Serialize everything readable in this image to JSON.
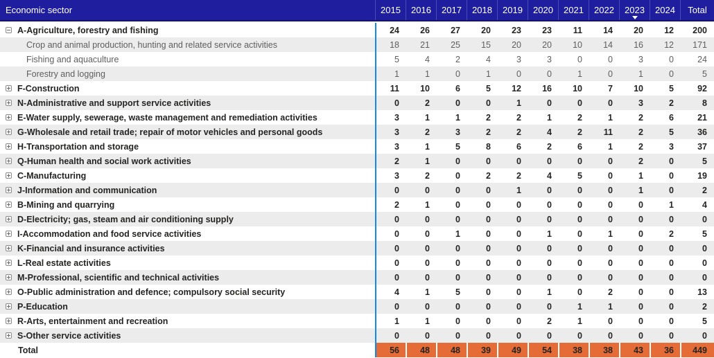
{
  "table": {
    "row_header_label": "Economic sector",
    "columns": [
      "2015",
      "2016",
      "2017",
      "2018",
      "2019",
      "2020",
      "2021",
      "2022",
      "2023",
      "2024",
      "Total"
    ],
    "sorted_column": "2023",
    "sort_direction": "descending",
    "colors": {
      "header_bg": "#1E1E9E",
      "header_border": "#12126E",
      "column_divider": "#1389E6",
      "row_stripe": "#ECECEC",
      "grand_total_bg": "#E66C37"
    },
    "rows": [
      {
        "label": "A-Agriculture, forestry and fishing",
        "level": 0,
        "expander": "expanded",
        "values": [
          24,
          26,
          27,
          20,
          23,
          23,
          11,
          14,
          20,
          12,
          200
        ]
      },
      {
        "label": "Crop and animal production, hunting and related service activities",
        "level": 1,
        "expander": null,
        "values": [
          18,
          21,
          25,
          15,
          20,
          20,
          10,
          14,
          16,
          12,
          171
        ]
      },
      {
        "label": "Fishing and aquaculture",
        "level": 1,
        "expander": null,
        "values": [
          5,
          4,
          2,
          4,
          3,
          3,
          0,
          0,
          3,
          0,
          24
        ]
      },
      {
        "label": "Forestry and logging",
        "level": 1,
        "expander": null,
        "values": [
          1,
          1,
          0,
          1,
          0,
          0,
          1,
          0,
          1,
          0,
          5
        ]
      },
      {
        "label": "F-Construction",
        "level": 0,
        "expander": "collapsed",
        "values": [
          11,
          10,
          6,
          5,
          12,
          16,
          10,
          7,
          10,
          5,
          92
        ]
      },
      {
        "label": "N-Administrative and support service activities",
        "level": 0,
        "expander": "collapsed",
        "values": [
          0,
          2,
          0,
          0,
          1,
          0,
          0,
          0,
          3,
          2,
          8
        ]
      },
      {
        "label": "E-Water supply, sewerage, waste management and remediation activities",
        "level": 0,
        "expander": "collapsed",
        "values": [
          3,
          1,
          1,
          2,
          2,
          1,
          2,
          1,
          2,
          6,
          21
        ]
      },
      {
        "label": "G-Wholesale and retail trade; repair of motor vehicles and personal goods",
        "level": 0,
        "expander": "collapsed",
        "values": [
          3,
          2,
          3,
          2,
          2,
          4,
          2,
          11,
          2,
          5,
          36
        ]
      },
      {
        "label": "H-Transportation and storage",
        "level": 0,
        "expander": "collapsed",
        "values": [
          3,
          1,
          5,
          8,
          6,
          2,
          6,
          1,
          2,
          3,
          37
        ]
      },
      {
        "label": "Q-Human health and social work activities",
        "level": 0,
        "expander": "collapsed",
        "values": [
          2,
          1,
          0,
          0,
          0,
          0,
          0,
          0,
          2,
          0,
          5
        ]
      },
      {
        "label": "C-Manufacturing",
        "level": 0,
        "expander": "collapsed",
        "values": [
          3,
          2,
          0,
          2,
          2,
          4,
          5,
          0,
          1,
          0,
          19
        ]
      },
      {
        "label": "J-Information and communication",
        "level": 0,
        "expander": "collapsed",
        "values": [
          0,
          0,
          0,
          0,
          1,
          0,
          0,
          0,
          1,
          0,
          2
        ]
      },
      {
        "label": "B-Mining and quarrying",
        "level": 0,
        "expander": "collapsed",
        "values": [
          2,
          1,
          0,
          0,
          0,
          0,
          0,
          0,
          0,
          1,
          4
        ]
      },
      {
        "label": "D-Electricity; gas, steam and air conditioning supply",
        "level": 0,
        "expander": "collapsed",
        "values": [
          0,
          0,
          0,
          0,
          0,
          0,
          0,
          0,
          0,
          0,
          0
        ]
      },
      {
        "label": "I-Accommodation and food service activities",
        "level": 0,
        "expander": "collapsed",
        "values": [
          0,
          0,
          1,
          0,
          0,
          1,
          0,
          1,
          0,
          2,
          5
        ]
      },
      {
        "label": "K-Financial and insurance activities",
        "level": 0,
        "expander": "collapsed",
        "values": [
          0,
          0,
          0,
          0,
          0,
          0,
          0,
          0,
          0,
          0,
          0
        ]
      },
      {
        "label": "L-Real estate activities",
        "level": 0,
        "expander": "collapsed",
        "values": [
          0,
          0,
          0,
          0,
          0,
          0,
          0,
          0,
          0,
          0,
          0
        ]
      },
      {
        "label": "M-Professional, scientific and technical activities",
        "level": 0,
        "expander": "collapsed",
        "values": [
          0,
          0,
          0,
          0,
          0,
          0,
          0,
          0,
          0,
          0,
          0
        ]
      },
      {
        "label": "O-Public administration and defence; compulsory social security",
        "level": 0,
        "expander": "collapsed",
        "values": [
          4,
          1,
          5,
          0,
          0,
          1,
          0,
          2,
          0,
          0,
          13
        ]
      },
      {
        "label": "P-Education",
        "level": 0,
        "expander": "collapsed",
        "values": [
          0,
          0,
          0,
          0,
          0,
          0,
          1,
          1,
          0,
          0,
          2
        ]
      },
      {
        "label": "R-Arts, entertainment and recreation",
        "level": 0,
        "expander": "collapsed",
        "values": [
          1,
          1,
          0,
          0,
          0,
          2,
          1,
          0,
          0,
          0,
          5
        ]
      },
      {
        "label": "S-Other service activities",
        "level": 0,
        "expander": "collapsed",
        "values": [
          0,
          0,
          0,
          0,
          0,
          0,
          0,
          0,
          0,
          0,
          0
        ]
      }
    ],
    "total_row": {
      "label": "Total",
      "values": [
        56,
        48,
        48,
        39,
        49,
        54,
        38,
        38,
        43,
        36,
        449
      ]
    }
  }
}
